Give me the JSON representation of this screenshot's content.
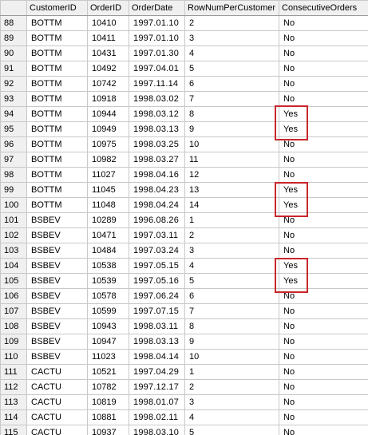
{
  "grid": {
    "columns": [
      "",
      "CustomerID",
      "OrderID",
      "OrderDate",
      "RowNumPerCustomer",
      "ConsecutiveOrders"
    ],
    "rows": [
      [
        "88",
        "BOTTM",
        "10410",
        "1997.01.10",
        "2",
        "No"
      ],
      [
        "89",
        "BOTTM",
        "10411",
        "1997.01.10",
        "3",
        "No"
      ],
      [
        "90",
        "BOTTM",
        "10431",
        "1997.01.30",
        "4",
        "No"
      ],
      [
        "91",
        "BOTTM",
        "10492",
        "1997.04.01",
        "5",
        "No"
      ],
      [
        "92",
        "BOTTM",
        "10742",
        "1997.11.14",
        "6",
        "No"
      ],
      [
        "93",
        "BOTTM",
        "10918",
        "1998.03.02",
        "7",
        "No"
      ],
      [
        "94",
        "BOTTM",
        "10944",
        "1998.03.12",
        "8",
        "Yes"
      ],
      [
        "95",
        "BOTTM",
        "10949",
        "1998.03.13",
        "9",
        "Yes"
      ],
      [
        "96",
        "BOTTM",
        "10975",
        "1998.03.25",
        "10",
        "No"
      ],
      [
        "97",
        "BOTTM",
        "10982",
        "1998.03.27",
        "11",
        "No"
      ],
      [
        "98",
        "BOTTM",
        "11027",
        "1998.04.16",
        "12",
        "No"
      ],
      [
        "99",
        "BOTTM",
        "11045",
        "1998.04.23",
        "13",
        "Yes"
      ],
      [
        "100",
        "BOTTM",
        "11048",
        "1998.04.24",
        "14",
        "Yes"
      ],
      [
        "101",
        "BSBEV",
        "10289",
        "1996.08.26",
        "1",
        "No"
      ],
      [
        "102",
        "BSBEV",
        "10471",
        "1997.03.11",
        "2",
        "No"
      ],
      [
        "103",
        "BSBEV",
        "10484",
        "1997.03.24",
        "3",
        "No"
      ],
      [
        "104",
        "BSBEV",
        "10538",
        "1997.05.15",
        "4",
        "Yes"
      ],
      [
        "105",
        "BSBEV",
        "10539",
        "1997.05.16",
        "5",
        "Yes"
      ],
      [
        "106",
        "BSBEV",
        "10578",
        "1997.06.24",
        "6",
        "No"
      ],
      [
        "107",
        "BSBEV",
        "10599",
        "1997.07.15",
        "7",
        "No"
      ],
      [
        "108",
        "BSBEV",
        "10943",
        "1998.03.11",
        "8",
        "No"
      ],
      [
        "109",
        "BSBEV",
        "10947",
        "1998.03.13",
        "9",
        "No"
      ],
      [
        "110",
        "BSBEV",
        "11023",
        "1998.04.14",
        "10",
        "No"
      ],
      [
        "111",
        "CACTU",
        "10521",
        "1997.04.29",
        "1",
        "No"
      ],
      [
        "112",
        "CACTU",
        "10782",
        "1997.12.17",
        "2",
        "No"
      ],
      [
        "113",
        "CACTU",
        "10819",
        "1998.01.07",
        "3",
        "No"
      ],
      [
        "114",
        "CACTU",
        "10881",
        "1998.02.11",
        "4",
        "No"
      ],
      [
        "115",
        "CACTU",
        "10937",
        "1998.03.10",
        "5",
        "No"
      ]
    ]
  },
  "annotation": {
    "highlight_color": "#c8262c"
  }
}
